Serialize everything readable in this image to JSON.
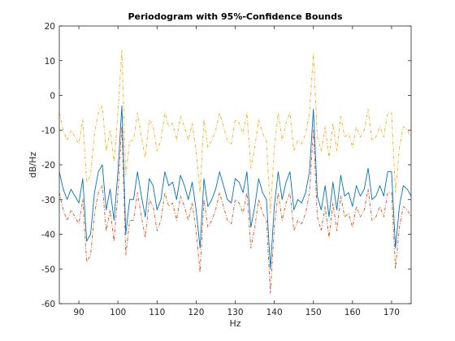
{
  "chart_data": {
    "type": "line",
    "title": "Periodogram with 95%-Confidence Bounds",
    "xlabel": "Hz",
    "ylabel": "dB/Hz",
    "xlim": [
      85,
      175
    ],
    "ylim": [
      -60,
      20
    ],
    "xticks": [
      90,
      100,
      110,
      120,
      130,
      140,
      150,
      160,
      170
    ],
    "yticks": [
      20,
      10,
      0,
      -10,
      -20,
      -30,
      -40,
      -50,
      -60
    ],
    "grid": false,
    "legend": "none",
    "x": [
      85,
      86,
      87,
      88,
      89,
      90,
      91,
      92,
      93,
      94,
      95,
      96,
      97,
      98,
      99,
      100,
      101,
      102,
      103,
      104,
      105,
      106,
      107,
      108,
      109,
      110,
      111,
      112,
      113,
      114,
      115,
      116,
      117,
      118,
      119,
      120,
      121,
      122,
      123,
      124,
      125,
      126,
      127,
      128,
      129,
      130,
      131,
      132,
      133,
      134,
      135,
      136,
      137,
      138,
      139,
      140,
      141,
      142,
      143,
      144,
      145,
      146,
      147,
      148,
      149,
      150,
      151,
      152,
      153,
      154,
      155,
      156,
      157,
      158,
      159,
      160,
      161,
      162,
      163,
      164,
      165,
      166,
      167,
      168,
      169,
      170,
      171,
      172,
      173,
      174,
      175
    ],
    "series": [
      {
        "color": "#0072BD",
        "style": "solid",
        "values": [
          -22,
          -27,
          -30,
          -27,
          -29,
          -31,
          -24,
          -42,
          -40,
          -28,
          -22,
          -20,
          -33,
          -27,
          -36,
          -22,
          -3,
          -40,
          -30,
          -30,
          -22,
          -29,
          -35,
          -24,
          -26,
          -33,
          -30,
          -22,
          -26,
          -25,
          -30,
          -23,
          -26,
          -30,
          -25,
          -33,
          -44,
          -24,
          -32,
          -30,
          -27,
          -22,
          -26,
          -30,
          -31,
          -24,
          -25,
          -28,
          -22,
          -38,
          -32,
          -24,
          -28,
          -30,
          -50,
          -32,
          -22,
          -30,
          -25,
          -22,
          -33,
          -30,
          -31,
          -28,
          -22,
          -4,
          -29,
          -33,
          -26,
          -35,
          -25,
          -33,
          -23,
          -29,
          -28,
          -32,
          -26,
          -29,
          -27,
          -21,
          -30,
          -29,
          -26,
          -29,
          -22,
          -22,
          -44,
          -32,
          -26,
          -27,
          -29
        ]
      },
      {
        "color": "#D95319",
        "style": "dash-dot",
        "values": [
          -28,
          -33,
          -36,
          -33,
          -35,
          -37,
          -30,
          -48,
          -46,
          -34,
          -28,
          -26,
          -39,
          -33,
          -42,
          -28,
          -9,
          -46,
          -36,
          -36,
          -28,
          -35,
          -41,
          -30,
          -32,
          -39,
          -36,
          -28,
          -32,
          -31,
          -36,
          -29,
          -32,
          -36,
          -31,
          -39,
          -51,
          -30,
          -38,
          -36,
          -33,
          -28,
          -32,
          -36,
          -37,
          -30,
          -31,
          -34,
          -28,
          -44,
          -38,
          -30,
          -34,
          -36,
          -57,
          -38,
          -28,
          -36,
          -31,
          -28,
          -39,
          -36,
          -37,
          -34,
          -28,
          -10,
          -35,
          -39,
          -32,
          -41,
          -31,
          -39,
          -29,
          -35,
          -34,
          -38,
          -32,
          -35,
          -33,
          -27,
          -36,
          -35,
          -32,
          -35,
          -28,
          -28,
          -50,
          -38,
          -32,
          -33,
          -35
        ]
      },
      {
        "color": "#EDB120",
        "style": "dash-dot",
        "values": [
          -5,
          -10,
          -13,
          -10,
          -12,
          -14,
          -7,
          -25,
          -23,
          -11,
          -5,
          -3,
          -16,
          -10,
          -19,
          -5,
          13,
          -23,
          -13,
          -13,
          -5,
          -12,
          -18,
          -7,
          -9,
          -16,
          -13,
          -5,
          -9,
          -8,
          -13,
          -6,
          -9,
          -13,
          -8,
          -16,
          -28,
          -7,
          -15,
          -13,
          -10,
          -5,
          -9,
          -13,
          -14,
          -7,
          -8,
          -11,
          -5,
          -21,
          -15,
          -7,
          -11,
          -13,
          -34,
          -15,
          -5,
          -13,
          -8,
          -5,
          -16,
          -13,
          -14,
          -11,
          -5,
          12,
          -12,
          -16,
          -9,
          -18,
          -8,
          -16,
          -6,
          -12,
          -11,
          -15,
          -9,
          -12,
          -10,
          -4,
          -13,
          -12,
          -9,
          -12,
          -5,
          -5,
          -28,
          -15,
          -9,
          -10,
          -12
        ]
      }
    ]
  }
}
